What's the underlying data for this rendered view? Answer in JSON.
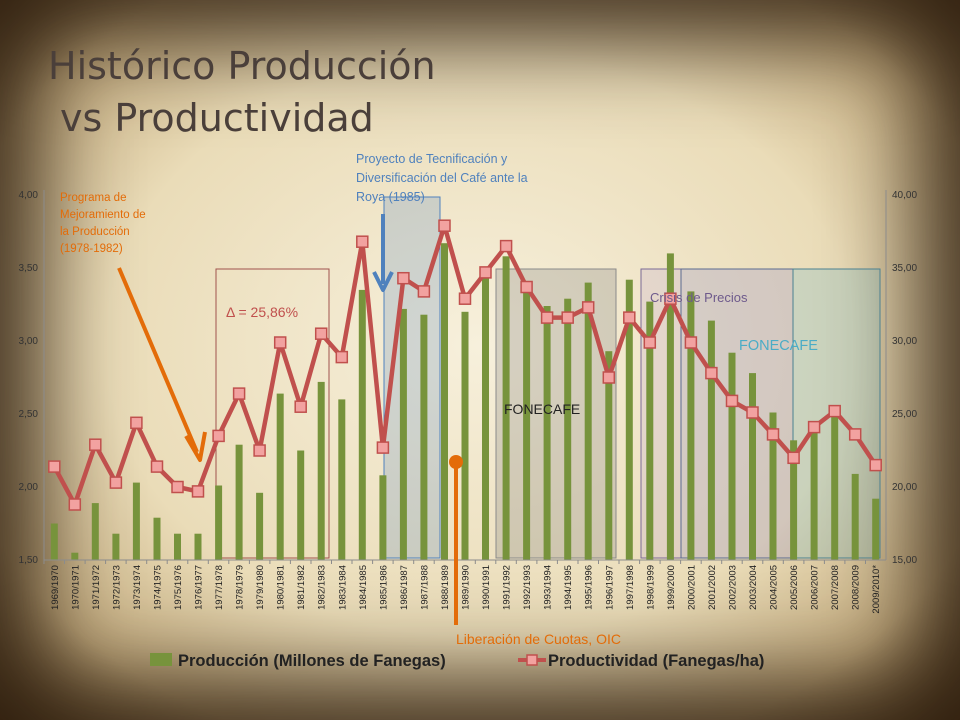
{
  "slide": {
    "title_line1": "Histórico Producción",
    "title_line2": "vs Productividad"
  },
  "colors": {
    "bar": "#77933c",
    "line": "#c0504d",
    "marker_fill": "#f2a2a0",
    "ann_orange": "#e36c09",
    "ann_blue": "#4f81bd",
    "ann_purple": "#6e5a8c",
    "ann_teal": "#4bacc6"
  },
  "chart_data": {
    "type": "bar",
    "categories": [
      "1969/1970",
      "1970/1971",
      "1971/1972",
      "1972/1973",
      "1973/1974",
      "1974/1975",
      "1975/1976",
      "1976/1977",
      "1977/1978",
      "1978/1979",
      "1979/1980",
      "1980/1981",
      "1981/1982",
      "1982/1983",
      "1983/1984",
      "1984/1985",
      "1985/1986",
      "1986/1987",
      "1987/1988",
      "1988/1989",
      "1989/1990",
      "1990/1991",
      "1991/1992",
      "1992/1993",
      "1993/1994",
      "1994/1995",
      "1995/1996",
      "1996/1997",
      "1997/1998",
      "1998/1999",
      "1999/2000",
      "2000/2001",
      "2001/2002",
      "2002/2003",
      "2003/2004",
      "2004/2005",
      "2005/2006",
      "2006/2007",
      "2007/2008",
      "2008/2009",
      "2009/2010*"
    ],
    "series": [
      {
        "name": "Producción (Millones de Fanegas)",
        "type": "bar",
        "axis": "left",
        "values": [
          1.75,
          1.55,
          1.89,
          1.68,
          2.03,
          1.79,
          1.68,
          1.68,
          2.01,
          2.29,
          1.96,
          2.64,
          2.25,
          2.72,
          2.6,
          3.35,
          2.08,
          3.22,
          3.18,
          3.67,
          3.2,
          3.45,
          3.58,
          3.38,
          3.24,
          3.29,
          3.4,
          2.93,
          3.42,
          3.27,
          3.6,
          3.34,
          3.14,
          2.92,
          2.78,
          2.51,
          2.32,
          2.42,
          2.5,
          2.09,
          1.92
        ]
      },
      {
        "name": "Productividad (Fanegas/ha)",
        "type": "line",
        "axis": "right",
        "values": [
          21.4,
          18.8,
          22.9,
          20.3,
          24.4,
          21.4,
          20.0,
          19.7,
          23.5,
          26.4,
          22.5,
          29.9,
          25.5,
          30.5,
          28.9,
          36.8,
          22.7,
          34.3,
          33.4,
          37.9,
          32.9,
          34.7,
          36.5,
          33.7,
          31.6,
          31.6,
          32.3,
          27.5,
          31.6,
          29.9,
          32.9,
          29.9,
          27.8,
          25.9,
          25.1,
          23.6,
          22.0,
          24.1,
          25.2,
          23.6,
          21.5
        ]
      }
    ],
    "left_ticks": [
      "1,50",
      "2,00",
      "2,50",
      "3,00",
      "3,50",
      "4,00"
    ],
    "right_ticks": [
      "15,00",
      "20,00",
      "25,00",
      "30,00",
      "35,00",
      "40,00"
    ],
    "ylim_left": [
      1.5,
      4.0
    ],
    "ylim_right": [
      15,
      40
    ],
    "legend_position": "bottom",
    "grid": false,
    "annotations": {
      "programa": {
        "lines": [
          "Programa de",
          "Mejoramiento de",
          "la Producción",
          "(1978-1982)"
        ]
      },
      "delta": "Δ = 25,86%",
      "proyecto": {
        "lines": [
          "Proyecto de Tecnificación y",
          "Diversificación del Café ante la",
          "Roya (1985)"
        ]
      },
      "fonecafe_1": "FONECAFE",
      "crisis": "Crisis de Precios",
      "fonecafe_2": "FONECAFE",
      "liberacion": "Liberación de Cuotas, OIC"
    }
  }
}
